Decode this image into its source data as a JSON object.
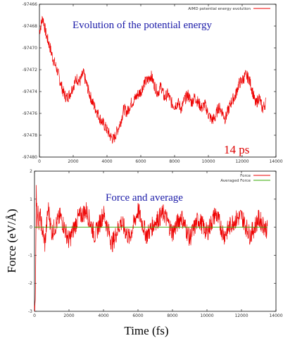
{
  "chart_data": [
    {
      "type": "line",
      "title": "",
      "annotation": "Evolution of the potential energy",
      "time_annotation": "14 ps",
      "legend": {
        "placement": "top-right",
        "entries": [
          "AIMD potential energy evolution"
        ]
      },
      "xlabel": "",
      "ylabel": "",
      "xlim": [
        0,
        14000
      ],
      "ylim": [
        -97480,
        -97466
      ],
      "xticks": [
        0,
        2000,
        4000,
        6000,
        8000,
        10000,
        12000,
        14000
      ],
      "yticks": [
        -97466,
        -97468,
        -97470,
        -97472,
        -97474,
        -97476,
        -97478,
        -97480
      ],
      "grid": false,
      "series": [
        {
          "name": "AIMD potential energy evolution",
          "color": "#ee0000",
          "x": [
            0,
            200,
            400,
            600,
            800,
            1000,
            1200,
            1400,
            1600,
            1800,
            2000,
            2200,
            2400,
            2600,
            2800,
            3000,
            3200,
            3400,
            3600,
            3800,
            4000,
            4200,
            4400,
            4600,
            4800,
            5000,
            5200,
            5400,
            5600,
            5800,
            6000,
            6200,
            6400,
            6600,
            6800,
            7000,
            7200,
            7400,
            7600,
            7800,
            8000,
            8200,
            8400,
            8600,
            8800,
            9000,
            9200,
            9400,
            9600,
            9800,
            10000,
            10200,
            10400,
            10600,
            10800,
            11000,
            11200,
            11400,
            11600,
            11800,
            12000,
            12200,
            12400,
            12600,
            12800,
            13000,
            13200,
            13400
          ],
          "y": [
            -97468.5,
            -97467.2,
            -97468.8,
            -97469.8,
            -97471.0,
            -97471.8,
            -97472.9,
            -97474.0,
            -97474.6,
            -97474.2,
            -97473.5,
            -97472.8,
            -97473.1,
            -97472.3,
            -97473.4,
            -97474.4,
            -97475.2,
            -97475.8,
            -97476.5,
            -97477.0,
            -97477.5,
            -97478.1,
            -97478.4,
            -97477.6,
            -97476.8,
            -97475.6,
            -97475.9,
            -97475.1,
            -97474.8,
            -97474.3,
            -97474.0,
            -97473.2,
            -97473.0,
            -97472.5,
            -97473.4,
            -97474.1,
            -97473.5,
            -97474.6,
            -97474.2,
            -97475.0,
            -97475.3,
            -97475.0,
            -97475.6,
            -97474.7,
            -97474.3,
            -97475.0,
            -97474.5,
            -97475.0,
            -97475.5,
            -97475.2,
            -97476.1,
            -97476.6,
            -97476.4,
            -97475.4,
            -97475.8,
            -97476.5,
            -97475.6,
            -97474.8,
            -97474.4,
            -97473.3,
            -97473.0,
            -97472.5,
            -97472.8,
            -97473.9,
            -97475.2,
            -97474.5,
            -97475.6,
            -97475.0
          ],
          "noise": 0.55
        }
      ]
    },
    {
      "type": "line",
      "title": "",
      "annotation": "Force and average",
      "legend": {
        "placement": "top-right",
        "entries": [
          "Force",
          "Averaged Force"
        ]
      },
      "xlabel": "Time (fs)",
      "ylabel": "Force (eV/Å)",
      "xlim": [
        0,
        14000
      ],
      "ylim": [
        -3,
        2
      ],
      "xticks": [
        0,
        2000,
        4000,
        6000,
        8000,
        10000,
        12000,
        14000
      ],
      "yticks": [
        2,
        1,
        0,
        -1,
        -2,
        -3
      ],
      "grid": false,
      "series": [
        {
          "name": "Force",
          "color": "#ee0000",
          "x": [
            0,
            30,
            60,
            100,
            150,
            200,
            250,
            300,
            400,
            600,
            800,
            1000,
            1500,
            2000,
            2500,
            3000,
            3500,
            4000,
            4500,
            5000,
            5500,
            6000,
            6500,
            7000,
            7500,
            8000,
            8500,
            9000,
            9500,
            10000,
            10500,
            11000,
            11500,
            12000,
            12500,
            13000,
            13500
          ],
          "y": [
            -3.0,
            -2.7,
            -2.0,
            1.4,
            0.2,
            0.9,
            -0.4,
            0.5,
            0.1,
            -0.6,
            0.7,
            -0.2,
            0.4,
            -0.5,
            0.3,
            0.6,
            -0.3,
            0.5,
            -0.6,
            0.2,
            -0.4,
            0.6,
            -0.3,
            0.2,
            0.5,
            -0.2,
            0.4,
            -0.4,
            0.3,
            -0.2,
            0.5,
            -0.3,
            0.2,
            0.4,
            -0.3,
            0.3,
            -0.1
          ],
          "noise": 0.35
        },
        {
          "name": "Averaged Force",
          "color": "#33aa00",
          "x": [
            0,
            13500
          ],
          "y": [
            0.0,
            0.0
          ]
        }
      ]
    }
  ]
}
